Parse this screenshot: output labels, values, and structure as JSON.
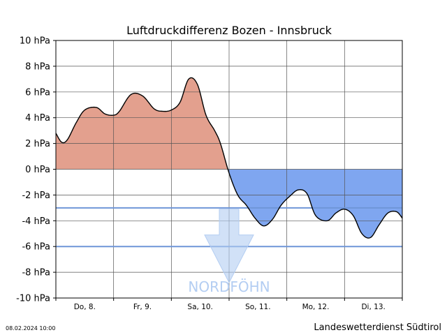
{
  "chart_data": {
    "type": "area",
    "title": "Luftdruckdifferenz Bozen - Innsbruck",
    "y_unit_suffix": " hPa",
    "ylim": [
      -10,
      10
    ],
    "yticks": [
      10,
      8,
      6,
      4,
      2,
      0,
      -2,
      -4,
      -6,
      -8,
      -10
    ],
    "ytick_labels": [
      "10 hPa",
      "8 hPa",
      "6 hPa",
      "4 hPa",
      "2 hPa",
      "0 hPa",
      "-2 hPa",
      "-4 hPa",
      "-6 hPa",
      "-8 hPa",
      "-10 hPa"
    ],
    "xlim": [
      0,
      6
    ],
    "day_labels": [
      "Do, 8.",
      "Fr, 9.",
      "Sa, 10.",
      "So, 11.",
      "Mo, 12.",
      "Di, 13."
    ],
    "grid": true,
    "x": [
      0,
      0.1,
      0.2,
      0.35,
      0.5,
      0.7,
      0.85,
      1.0,
      1.1,
      1.3,
      1.5,
      1.7,
      1.85,
      2.0,
      2.15,
      2.3,
      2.45,
      2.6,
      2.75,
      2.85,
      3.0,
      3.15,
      3.3,
      3.45,
      3.6,
      3.75,
      3.9,
      4.05,
      4.2,
      4.35,
      4.5,
      4.7,
      4.85,
      5.0,
      5.15,
      5.3,
      5.45,
      5.6,
      5.75,
      5.9,
      6.0
    ],
    "values": [
      2.8,
      2.1,
      2.3,
      3.6,
      4.6,
      4.8,
      4.3,
      4.2,
      4.5,
      5.8,
      5.7,
      4.7,
      4.5,
      4.6,
      5.2,
      7.0,
      6.6,
      4.2,
      3.0,
      2.0,
      -0.3,
      -2.0,
      -2.8,
      -3.8,
      -4.4,
      -3.9,
      -2.8,
      -2.1,
      -1.6,
      -1.9,
      -3.6,
      -4.0,
      -3.4,
      -3.1,
      -3.6,
      -5.0,
      -5.3,
      -4.3,
      -3.4,
      -3.3,
      -3.8
    ],
    "threshold_lines": [
      -3,
      -6
    ],
    "positive_color": "#e3a08e",
    "negative_color": "#7fa6f0",
    "threshold_color": "#6f96d8",
    "line_color": "#000000",
    "annotation": {
      "text": "NORDFÖHN",
      "x": 3.0,
      "color": "#b3cdf2"
    }
  },
  "footer": {
    "timestamp": "08.02.2024 10:00",
    "agency": "Landeswetterdienst Südtirol"
  }
}
